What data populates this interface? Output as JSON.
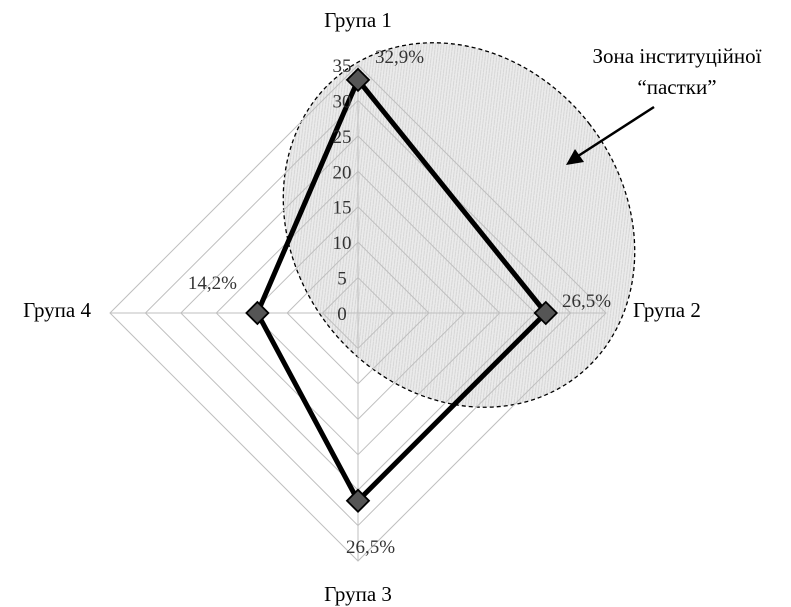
{
  "chart_data": {
    "type": "radar",
    "categories": [
      "Група 1",
      "Група 2",
      "Група 3",
      "Група 4"
    ],
    "series": [
      {
        "values": [
          32.9,
          26.5,
          26.5,
          14.2
        ]
      }
    ],
    "data_labels": [
      "32,9%",
      "26,5%",
      "26,5%",
      "14,2%"
    ],
    "radial_axis": {
      "min": 0,
      "max": 35,
      "step": 5,
      "tick_labels": [
        "0",
        "5",
        "10",
        "15",
        "20",
        "25",
        "30",
        "35"
      ]
    },
    "grid": true,
    "annotation": {
      "text_lines": [
        "Зона інституційної",
        "“пастки”"
      ]
    },
    "colors": {
      "series_line": "#000000",
      "marker_fill": "#555555",
      "grid": "#bfbfbf",
      "zone_fill": "#ebebeb"
    }
  }
}
